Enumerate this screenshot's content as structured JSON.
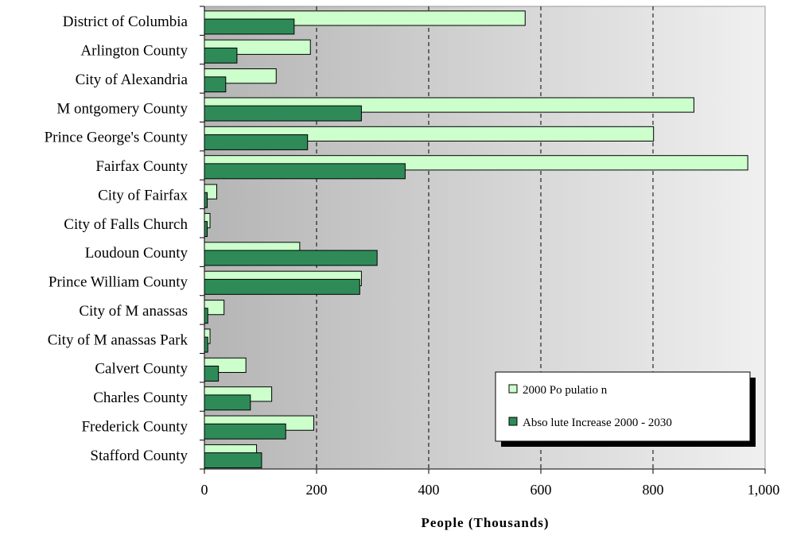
{
  "chart_data": {
    "type": "bar",
    "orientation": "horizontal",
    "categories": [
      "District of Columbia",
      "Arlington County",
      "City of Alexandria",
      "M ontgomery County",
      "Prince George's County",
      "Fairfax County",
      "City of Fairfax",
      "City of Falls Church",
      "Loudoun County",
      "Prince William County",
      "City of M anassas",
      "City of M anassas Park",
      "Calvert County",
      "Charles County",
      "Frederick County",
      "Stafford County"
    ],
    "series": [
      {
        "name": "2000 Po pulatio n",
        "color": "#ccffcc",
        "values": [
          572,
          189,
          128,
          873,
          801,
          969,
          22,
          10,
          170,
          280,
          35,
          10,
          74,
          120,
          195,
          93
        ]
      },
      {
        "name": "Abso lute Increase 2000 - 2030",
        "color": "#2e8b57",
        "values": [
          160,
          58,
          38,
          280,
          184,
          358,
          5,
          5,
          308,
          277,
          6,
          6,
          25,
          82,
          145,
          102
        ]
      }
    ],
    "xlabel": "People (Thousands)",
    "ylabel": "",
    "xlim": [
      0,
      1000
    ],
    "xticks": [
      "0",
      "200",
      "400",
      "600",
      "800",
      "1,000"
    ],
    "grid": "vertical dashed",
    "legend_position": "bottom-right",
    "background": "gradient grey"
  }
}
